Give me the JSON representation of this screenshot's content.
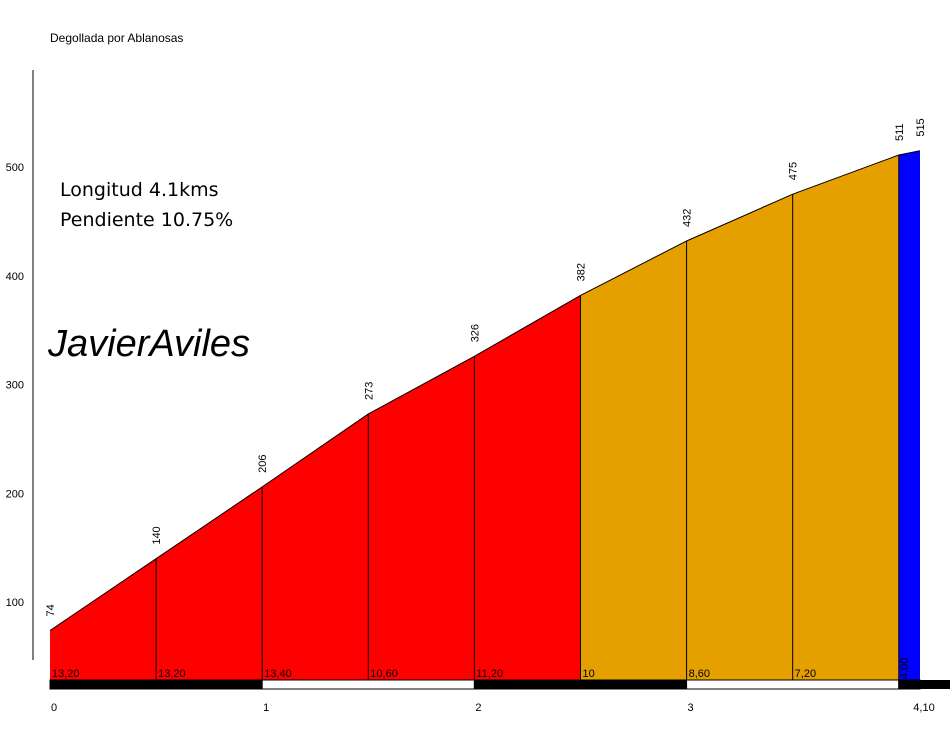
{
  "chart_data": {
    "type": "area",
    "title": "Degollada por Ablanosas",
    "xlabel": "",
    "ylabel": "",
    "x": [
      0,
      0.5,
      1,
      1.5,
      2,
      2.5,
      3,
      3.5,
      4,
      4.1
    ],
    "elevations": [
      74,
      140,
      206,
      273,
      326,
      382,
      432,
      475,
      511,
      515
    ],
    "elevation_labels": [
      "74",
      "140",
      "206",
      "273",
      "326",
      "382",
      "432",
      "475",
      "511",
      "515"
    ],
    "gradient_labels": [
      "13,20",
      "13,20",
      "13,40",
      "10,60",
      "11,20",
      "10",
      "8,60",
      "7,20",
      "4,00"
    ],
    "segment_colors": [
      "#ff0000",
      "#ff0000",
      "#ff0000",
      "#ff0000",
      "#ff0000",
      "#e5a000",
      "#e5a000",
      "#e5a000",
      "#0000ff"
    ],
    "x_ticks": [
      0,
      1,
      2,
      3,
      4.1
    ],
    "x_tick_labels": [
      "0",
      "1",
      "2",
      "3",
      "4,10"
    ],
    "y_ticks": [
      100,
      200,
      300,
      400,
      500
    ],
    "y_tick_labels": [
      "100",
      "200",
      "300",
      "400",
      "500"
    ],
    "xlim": [
      0,
      4.1
    ],
    "ylim": [
      30,
      590
    ],
    "grid": false
  },
  "info": {
    "length_text": "Longitud 4.1kms",
    "gradient_text": "Pendiente 10.75%"
  },
  "watermark": "JavierAviles"
}
